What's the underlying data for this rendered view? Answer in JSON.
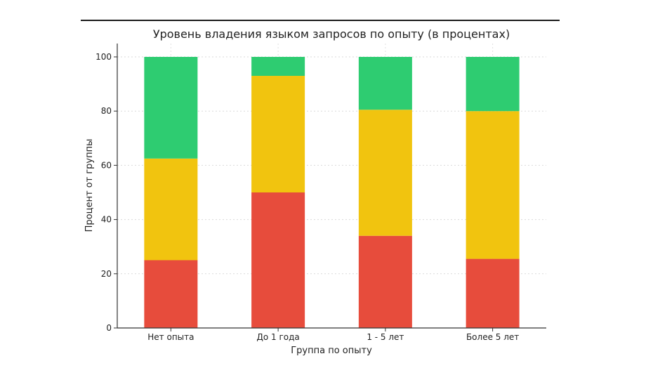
{
  "chart_data": {
    "type": "bar",
    "stacked": true,
    "title": "Уровень владения языком запросов по опыту (в процентах)",
    "xlabel": "Группа по опыту",
    "ylabel": "Процент от группы",
    "categories": [
      "Нет опыта",
      "До 1 года",
      "1 - 5 лет",
      "Более 5 лет"
    ],
    "series": [
      {
        "values": [
          25,
          50,
          34,
          25.5
        ],
        "color": "#e74c3c"
      },
      {
        "values": [
          37.5,
          43,
          46.5,
          54.5
        ],
        "color": "#f1c40f"
      },
      {
        "values": [
          37.5,
          7,
          19.5,
          20
        ],
        "color": "#2ecc71"
      }
    ],
    "ylim": [
      0,
      100
    ],
    "yticks": [
      0,
      20,
      40,
      60,
      80,
      100
    ],
    "grid": true
  }
}
